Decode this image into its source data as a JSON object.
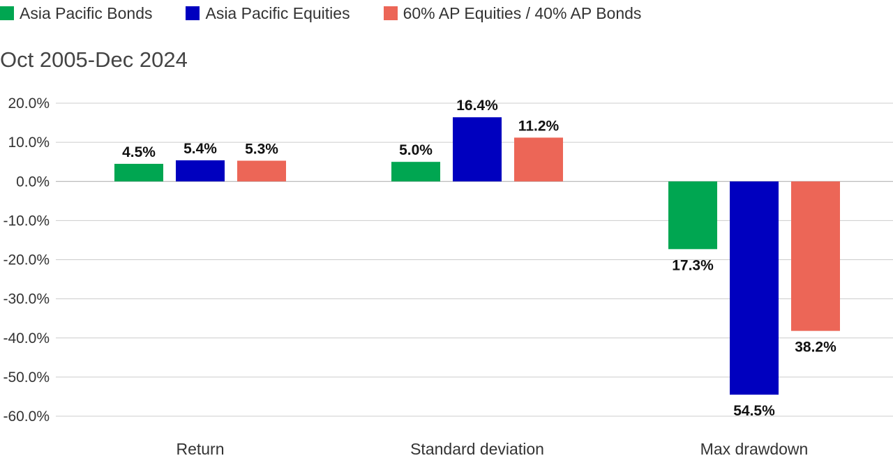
{
  "chart_data": {
    "type": "bar",
    "title": "",
    "subtitle": "Oct 2005-Dec 2024",
    "xlabel": "",
    "ylabel": "",
    "ylim": [
      -60,
      20
    ],
    "yticks": [
      20,
      10,
      0,
      -10,
      -20,
      -30,
      -40,
      -50,
      -60
    ],
    "ytick_labels": [
      "20.0%",
      "10.0%",
      "0.0%",
      "-10.0%",
      "-20.0%",
      "-30.0%",
      "-40.0%",
      "-50.0%",
      "-60.0%"
    ],
    "grid": true,
    "legend_position": "top-left",
    "categories": [
      "Return",
      "Standard deviation",
      "Max drawdown"
    ],
    "series": [
      {
        "name": "Asia Pacific Bonds",
        "color": "#00A651",
        "values": [
          4.5,
          5.0,
          -17.3
        ],
        "labels": [
          "4.5%",
          "5.0%",
          "17.3%"
        ]
      },
      {
        "name": "Asia Pacific Equities",
        "color": "#0000BF",
        "values": [
          5.4,
          16.4,
          -54.5
        ],
        "labels": [
          "5.4%",
          "16.4%",
          "54.5%"
        ]
      },
      {
        "name": "60% AP Equities / 40% AP Bonds",
        "color": "#EC6657",
        "values": [
          5.3,
          11.2,
          -38.2
        ],
        "labels": [
          "5.3%",
          "11.2%",
          "38.2%"
        ]
      }
    ]
  }
}
